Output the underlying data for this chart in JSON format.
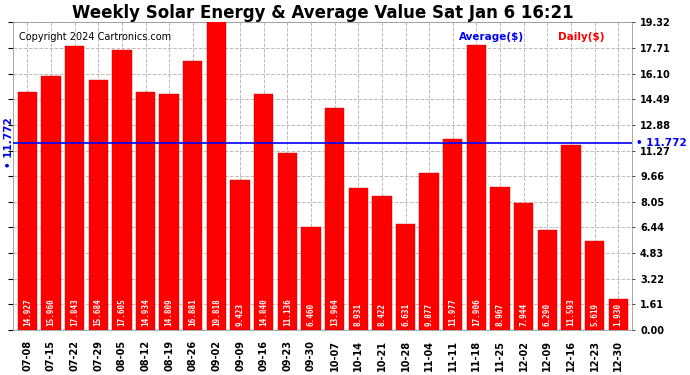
{
  "title": "Weekly Solar Energy & Average Value Sat Jan 6 16:21",
  "copyright": "Copyright 2024 Cartronics.com",
  "average_label": "Average($)",
  "daily_label": "Daily($)",
  "average_value": 11.772,
  "categories": [
    "07-08",
    "07-15",
    "07-22",
    "07-29",
    "08-05",
    "08-12",
    "08-19",
    "08-26",
    "09-02",
    "09-09",
    "09-16",
    "09-23",
    "09-30",
    "10-07",
    "10-14",
    "10-21",
    "10-28",
    "11-04",
    "11-11",
    "11-18",
    "11-25",
    "12-02",
    "12-09",
    "12-16",
    "12-23",
    "12-30"
  ],
  "values": [
    14.927,
    15.96,
    17.843,
    15.684,
    17.605,
    14.934,
    14.809,
    16.881,
    19.818,
    9.423,
    14.84,
    11.136,
    6.46,
    13.964,
    8.931,
    8.422,
    6.631,
    9.877,
    11.977,
    17.906,
    8.967,
    7.944,
    6.29,
    11.593,
    5.619,
    1.93
  ],
  "bar_color": "#ff0000",
  "bar_edge_color": "#cc0000",
  "avg_line_color": "#0000ff",
  "avg_label_color": "#0000ff",
  "daily_label_color": "#ff0000",
  "background_color": "#ffffff",
  "plot_bg_color": "#ffffff",
  "grid_color": "#bbbbbb",
  "yticks": [
    0.0,
    1.61,
    3.22,
    4.83,
    6.44,
    8.05,
    9.66,
    11.27,
    12.88,
    14.49,
    16.1,
    17.71,
    19.32
  ],
  "title_fontsize": 12,
  "tick_fontsize": 7,
  "label_fontsize": 7.5,
  "value_fontsize": 5.5,
  "copyright_fontsize": 7
}
